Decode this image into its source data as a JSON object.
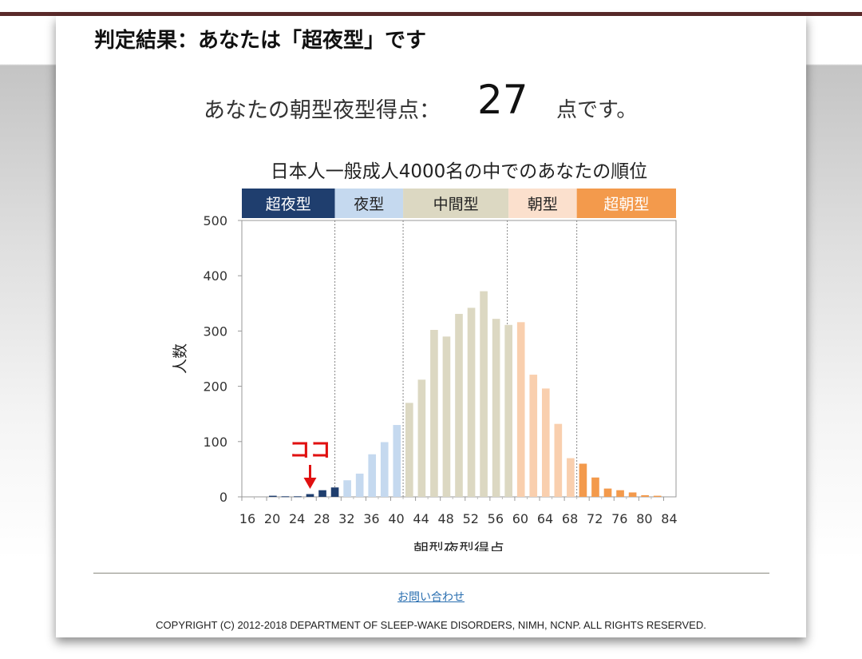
{
  "result_title": "判定結果：あなたは「超夜型」です",
  "score": {
    "label": "あなたの朝型夜型得点：",
    "value": "27",
    "suffix": "点です。"
  },
  "chart_data": {
    "type": "bar",
    "title": "日本人一般成人4000名の中でのあなたの順位",
    "xlabel": "朝型夜型得点",
    "ylabel": "人数",
    "ylim": [
      0,
      500
    ],
    "yticks": [
      0,
      100,
      200,
      300,
      400,
      500
    ],
    "xlim": [
      16,
      86
    ],
    "xticks": [
      16,
      20,
      24,
      28,
      32,
      36,
      40,
      44,
      48,
      52,
      56,
      60,
      64,
      68,
      72,
      76,
      80,
      84
    ],
    "grid": false,
    "categories_band": [
      {
        "name": "超夜型",
        "from": 16,
        "to": 31,
        "color": "#1f3e6e",
        "text_color": "#ffffff"
      },
      {
        "name": "夜型",
        "from": 31,
        "to": 42,
        "color": "#c5d9ef",
        "text_color": "#222222"
      },
      {
        "name": "中間型",
        "from": 42,
        "to": 59,
        "color": "#dcd8c2",
        "text_color": "#222222"
      },
      {
        "name": "朝型",
        "from": 59,
        "to": 70,
        "color": "#fbe0cd",
        "text_color": "#222222"
      },
      {
        "name": "超朝型",
        "from": 70,
        "to": 86,
        "color": "#f39a4c",
        "text_color": "#ffffff"
      }
    ],
    "boundaries": [
      31,
      42,
      58.8,
      70
    ],
    "x": [
      16,
      18,
      20,
      22,
      24,
      26,
      28,
      30,
      32,
      34,
      36,
      38,
      40,
      42,
      44,
      46,
      48,
      50,
      52,
      54,
      56,
      58,
      60,
      62,
      64,
      66,
      68,
      70,
      72,
      74,
      76,
      78,
      80,
      82,
      84
    ],
    "values": [
      0,
      0,
      2,
      1,
      1,
      5,
      12,
      17,
      30,
      42,
      77,
      99,
      130,
      170,
      212,
      302,
      290,
      331,
      342,
      372,
      322,
      311,
      316,
      221,
      196,
      132,
      70,
      60,
      35,
      15,
      12,
      8,
      3,
      2,
      0
    ],
    "bar_colors": {
      "超夜型": "#1f3e6e",
      "夜型": "#c5d9ef",
      "中間型": "#dcd8c2",
      "朝型": "#f9cfae",
      "超朝型": "#f39a4c"
    },
    "annotation": {
      "text": "ココ",
      "x": 26,
      "color": "#e01010"
    }
  },
  "footer": {
    "contact": "お問い合わせ",
    "copyright": "COPYRIGHT (C) 2012-2018 DEPARTMENT OF SLEEP-WAKE DISORDERS, NIMH, NCNP. ALL RIGHTS RESERVED."
  }
}
